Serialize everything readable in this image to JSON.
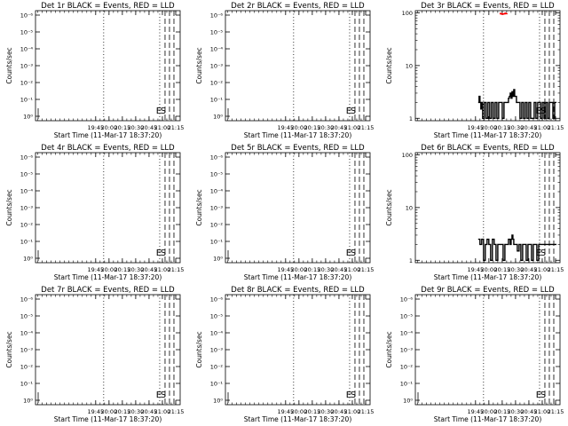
{
  "figure": {
    "colors": {
      "events": "#000000",
      "lld": "#ff0000",
      "background": "#ffffff"
    }
  },
  "chart_data": [
    {
      "type": "line",
      "title": "Det 1r BLACK = Events, RED = LLD",
      "xlabel": "Start Time (11-Mar-17 18:37:20)",
      "ylabel": "Counts/sec",
      "x_ticks": [
        "19:45",
        "20:00",
        "20:15",
        "20:30",
        "20:45",
        "21:00",
        "21:15"
      ],
      "yscale": "log",
      "y_ticks": [
        "10⁰",
        "10⁻¹",
        "10⁻²",
        "10⁻³",
        "10⁻⁴",
        "10⁻⁵",
        "10⁻⁶"
      ],
      "markers": [
        {
          "label": "E",
          "x": "21:03",
          "style": "dashed"
        },
        {
          "label": "S",
          "x": "21:08",
          "style": "dashed"
        },
        {
          "label": "",
          "x": "21:13",
          "style": "dashed"
        },
        {
          "label": "",
          "x": "19:54",
          "style": "dotted"
        },
        {
          "label": "",
          "x": "20:57",
          "style": "dotted"
        }
      ],
      "series": []
    },
    {
      "type": "line",
      "title": "Det 2r BLACK = Events, RED = LLD",
      "xlabel": "Start Time (11-Mar-17 18:37:20)",
      "ylabel": "Counts/sec",
      "x_ticks": [
        "19:45",
        "20:00",
        "20:15",
        "20:30",
        "20:45",
        "21:00",
        "21:15"
      ],
      "yscale": "log",
      "y_ticks": [
        "10⁰",
        "10⁻¹",
        "10⁻²",
        "10⁻³",
        "10⁻⁴",
        "10⁻⁵",
        "10⁻⁶"
      ],
      "markers": [
        {
          "label": "E",
          "x": "21:03",
          "style": "dashed"
        },
        {
          "label": "S",
          "x": "21:08",
          "style": "dashed"
        },
        {
          "label": "",
          "x": "21:13",
          "style": "dashed"
        },
        {
          "label": "",
          "x": "19:54",
          "style": "dotted"
        },
        {
          "label": "",
          "x": "20:57",
          "style": "dotted"
        }
      ],
      "series": []
    },
    {
      "type": "line",
      "title": "Det 3r BLACK = Events, RED = LLD",
      "xlabel": "Start Time (11-Mar-17 18:37:20)",
      "ylabel": "Counts/sec",
      "x_ticks": [
        "19:45",
        "20:00",
        "20:15",
        "20:30",
        "20:45",
        "21:00",
        "21:15"
      ],
      "yscale": "log",
      "y_ticks": [
        "1",
        "10",
        "100"
      ],
      "markers": [
        {
          "label": "E",
          "x": "21:03",
          "style": "dashed"
        },
        {
          "label": "S",
          "x": "21:08",
          "style": "dashed"
        },
        {
          "label": "",
          "x": "21:13",
          "style": "dashed"
        },
        {
          "label": "",
          "x": "19:54",
          "style": "dotted"
        },
        {
          "label": "",
          "x": "20:57",
          "style": "dotted"
        }
      ],
      "series": [
        {
          "color": "#000000",
          "x": [
            "19:48",
            "19:49",
            "19:50",
            "19:51",
            "19:52",
            "19:53",
            "19:55",
            "19:57",
            "19:59",
            "20:01",
            "20:03",
            "20:05",
            "20:07",
            "20:09",
            "20:11",
            "20:13",
            "20:15",
            "20:17",
            "20:19",
            "20:21",
            "20:22",
            "20:23",
            "20:24",
            "20:25",
            "20:26",
            "20:27",
            "20:28",
            "20:29",
            "20:31",
            "20:33",
            "20:35",
            "20:37",
            "20:39",
            "20:41",
            "20:43",
            "20:45",
            "20:47",
            "20:49",
            "20:51",
            "20:53",
            "20:55",
            "20:56",
            "20:58",
            "21:00",
            "21:02",
            "21:04",
            "21:06",
            "21:08",
            "21:10",
            "21:12",
            "21:14"
          ],
          "values": [
            2,
            2.6,
            2,
            1.5,
            2,
            1,
            2,
            1,
            2,
            1,
            2,
            1,
            2,
            1,
            2,
            2,
            1,
            2,
            2,
            2,
            2.4,
            2.6,
            3,
            2.4,
            3.2,
            2.6,
            3.5,
            2.6,
            2,
            2,
            1,
            2,
            1,
            2,
            1,
            2,
            1,
            1,
            2,
            1,
            2,
            2,
            1,
            2,
            1,
            2,
            1,
            2,
            2,
            1,
            2
          ]
        },
        {
          "color": "#ff0000",
          "x": [
            "20:12",
            "20:13",
            "20:14",
            "20:15",
            "20:16",
            "20:17",
            "20:18",
            "20:19"
          ],
          "values": [
            98,
            95,
            97,
            94,
            96,
            95,
            99,
            96
          ]
        }
      ]
    },
    {
      "type": "line",
      "title": "Det 4r BLACK = Events, RED = LLD",
      "xlabel": "Start Time (11-Mar-17 18:37:20)",
      "ylabel": "Counts/sec",
      "x_ticks": [
        "19:45",
        "20:00",
        "20:15",
        "20:30",
        "20:45",
        "21:00",
        "21:15"
      ],
      "yscale": "log",
      "y_ticks": [
        "10⁰",
        "10⁻¹",
        "10⁻²",
        "10⁻³",
        "10⁻⁴",
        "10⁻⁵",
        "10⁻⁶"
      ],
      "markers": [
        {
          "label": "E",
          "x": "21:03",
          "style": "dashed"
        },
        {
          "label": "S",
          "x": "21:08",
          "style": "dashed"
        },
        {
          "label": "",
          "x": "21:13",
          "style": "dashed"
        },
        {
          "label": "",
          "x": "19:54",
          "style": "dotted"
        },
        {
          "label": "",
          "x": "20:57",
          "style": "dotted"
        }
      ],
      "series": []
    },
    {
      "type": "line",
      "title": "Det 5r BLACK = Events, RED = LLD",
      "xlabel": "Start Time (11-Mar-17 18:37:20)",
      "ylabel": "Counts/sec",
      "x_ticks": [
        "19:45",
        "20:00",
        "20:15",
        "20:30",
        "20:45",
        "21:00",
        "21:15"
      ],
      "yscale": "log",
      "y_ticks": [
        "10⁰",
        "10⁻¹",
        "10⁻²",
        "10⁻³",
        "10⁻⁴",
        "10⁻⁵",
        "10⁻⁶"
      ],
      "markers": [
        {
          "label": "E",
          "x": "21:03",
          "style": "dashed"
        },
        {
          "label": "S",
          "x": "21:08",
          "style": "dashed"
        },
        {
          "label": "",
          "x": "21:13",
          "style": "dashed"
        },
        {
          "label": "",
          "x": "19:54",
          "style": "dotted"
        },
        {
          "label": "",
          "x": "20:57",
          "style": "dotted"
        }
      ],
      "series": []
    },
    {
      "type": "line",
      "title": "Det 6r BLACK = Events, RED = LLD",
      "xlabel": "Start Time (11-Mar-17 18:37:20)",
      "ylabel": "Counts/sec",
      "x_ticks": [
        "19:45",
        "20:00",
        "20:15",
        "20:30",
        "20:45",
        "21:00",
        "21:15"
      ],
      "yscale": "log",
      "y_ticks": [
        "1",
        "10",
        "100"
      ],
      "markers": [
        {
          "label": "E",
          "x": "21:03",
          "style": "dashed"
        },
        {
          "label": "S",
          "x": "21:08",
          "style": "dashed"
        },
        {
          "label": "",
          "x": "21:13",
          "style": "dashed"
        },
        {
          "label": "",
          "x": "19:54",
          "style": "dotted"
        },
        {
          "label": "",
          "x": "20:57",
          "style": "dotted"
        }
      ],
      "series": [
        {
          "color": "#000000",
          "x": [
            "19:48",
            "19:50",
            "19:52",
            "19:54",
            "19:56",
            "19:58",
            "20:00",
            "20:02",
            "20:04",
            "20:06",
            "20:08",
            "20:10",
            "20:12",
            "20:14",
            "20:16",
            "20:18",
            "20:20",
            "20:22",
            "20:24",
            "20:25",
            "20:26",
            "20:27",
            "20:28",
            "20:30",
            "20:32",
            "20:34",
            "20:36",
            "20:38",
            "20:40",
            "20:42",
            "20:44",
            "20:46",
            "20:48",
            "20:50",
            "20:52",
            "20:54",
            "20:56",
            "20:58",
            "21:00",
            "21:02",
            "21:04",
            "21:06",
            "21:08",
            "21:10",
            "21:12",
            "21:14"
          ],
          "values": [
            2.5,
            2,
            2.5,
            1,
            2,
            2.5,
            2,
            1,
            2.5,
            2,
            1,
            2,
            2,
            2,
            1,
            2,
            2,
            2.5,
            2,
            2.5,
            3,
            2.5,
            2,
            2,
            1.5,
            2,
            1,
            2,
            2,
            1,
            2,
            2,
            1,
            2,
            2,
            1,
            2,
            2,
            2,
            2,
            2,
            2,
            2,
            2,
            2,
            2
          ]
        }
      ]
    },
    {
      "type": "line",
      "title": "Det 7r BLACK = Events, RED = LLD",
      "xlabel": "Start Time (11-Mar-17 18:37:20)",
      "ylabel": "Counts/sec",
      "x_ticks": [
        "19:45",
        "20:00",
        "20:15",
        "20:30",
        "20:45",
        "21:00",
        "21:15"
      ],
      "yscale": "log",
      "y_ticks": [
        "10⁰",
        "10⁻¹",
        "10⁻²",
        "10⁻³",
        "10⁻⁴",
        "10⁻⁵",
        "10⁻⁶"
      ],
      "markers": [
        {
          "label": "E",
          "x": "21:03",
          "style": "dashed"
        },
        {
          "label": "S",
          "x": "21:08",
          "style": "dashed"
        },
        {
          "label": "",
          "x": "21:13",
          "style": "dashed"
        },
        {
          "label": "",
          "x": "19:54",
          "style": "dotted"
        },
        {
          "label": "",
          "x": "20:57",
          "style": "dotted"
        }
      ],
      "series": []
    },
    {
      "type": "line",
      "title": "Det 8r BLACK = Events, RED = LLD",
      "xlabel": "Start Time (11-Mar-17 18:37:20)",
      "ylabel": "Counts/sec",
      "x_ticks": [
        "19:45",
        "20:00",
        "20:15",
        "20:30",
        "20:45",
        "21:00",
        "21:15"
      ],
      "yscale": "log",
      "y_ticks": [
        "10⁰",
        "10⁻¹",
        "10⁻²",
        "10⁻³",
        "10⁻⁴",
        "10⁻⁵",
        "10⁻⁶"
      ],
      "markers": [
        {
          "label": "E",
          "x": "21:03",
          "style": "dashed"
        },
        {
          "label": "S",
          "x": "21:08",
          "style": "dashed"
        },
        {
          "label": "",
          "x": "21:13",
          "style": "dashed"
        },
        {
          "label": "",
          "x": "19:54",
          "style": "dotted"
        },
        {
          "label": "",
          "x": "20:57",
          "style": "dotted"
        }
      ],
      "series": []
    },
    {
      "type": "line",
      "title": "Det 9r BLACK = Events, RED = LLD",
      "xlabel": "Start Time (11-Mar-17 18:37:20)",
      "ylabel": "Counts/sec",
      "x_ticks": [
        "19:45",
        "20:00",
        "20:15",
        "20:30",
        "20:45",
        "21:00",
        "21:15"
      ],
      "yscale": "log",
      "y_ticks": [
        "10⁰",
        "10⁻¹",
        "10⁻²",
        "10⁻³",
        "10⁻⁴",
        "10⁻⁵",
        "10⁻⁶"
      ],
      "markers": [
        {
          "label": "E",
          "x": "21:03",
          "style": "dashed"
        },
        {
          "label": "S",
          "x": "21:08",
          "style": "dashed"
        },
        {
          "label": "",
          "x": "21:13",
          "style": "dashed"
        },
        {
          "label": "",
          "x": "19:54",
          "style": "dotted"
        },
        {
          "label": "",
          "x": "20:57",
          "style": "dotted"
        }
      ],
      "series": []
    }
  ]
}
